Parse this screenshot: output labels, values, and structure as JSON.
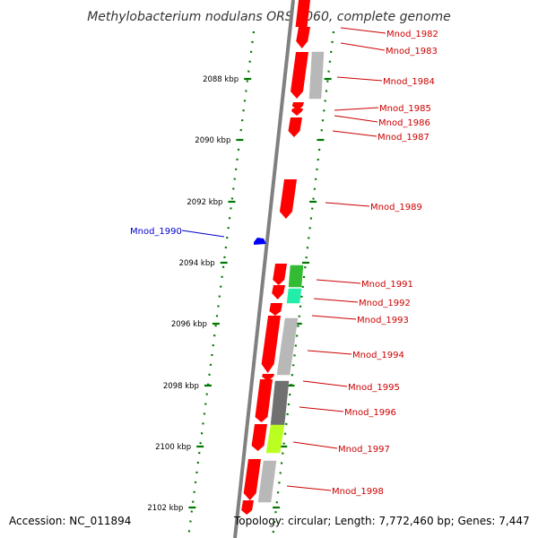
{
  "title": "Methylobacterium nodulans ORS 2060, complete genome",
  "footer": {
    "accession": "Accession: NC_011894",
    "summary": "Topology: circular; Length: 7,772,460 bp; Genes: 7,447"
  },
  "colors": {
    "forward_gene": "#ff0000",
    "reverse_gene": "#0000ff",
    "forward_label": "#cc0000",
    "reverse_label": "#0000cc",
    "backbone": "#808080",
    "tick": "#007700",
    "cog_gray": "#b8b8b8",
    "cog_dark": "#707070",
    "cog_green": "#33bb33",
    "cog_teal": "#22eeaa",
    "cog_yellowgreen": "#bbff22"
  },
  "ticks": [
    "2088 kbp",
    "2090 kbp",
    "2092 kbp",
    "2094 kbp",
    "2096 kbp",
    "2098 kbp",
    "2100 kbp",
    "2102 kbp"
  ],
  "genes": [
    {
      "label": "Mnod_1982",
      "strand": "+"
    },
    {
      "label": "Mnod_1983",
      "strand": "+"
    },
    {
      "label": "Mnod_1984",
      "strand": "+"
    },
    {
      "label": "Mnod_1985",
      "strand": "+"
    },
    {
      "label": "Mnod_1986",
      "strand": "+"
    },
    {
      "label": "Mnod_1987",
      "strand": "+"
    },
    {
      "label": "Mnod_1989",
      "strand": "+"
    },
    {
      "label": "Mnod_1990",
      "strand": "-"
    },
    {
      "label": "Mnod_1991",
      "strand": "+"
    },
    {
      "label": "Mnod_1992",
      "strand": "+"
    },
    {
      "label": "Mnod_1993",
      "strand": "+"
    },
    {
      "label": "Mnod_1994",
      "strand": "+"
    },
    {
      "label": "Mnod_1995",
      "strand": "+"
    },
    {
      "label": "Mnod_1996",
      "strand": "+"
    },
    {
      "label": "Mnod_1997",
      "strand": "+"
    },
    {
      "label": "Mnod_1998",
      "strand": "+"
    }
  ]
}
